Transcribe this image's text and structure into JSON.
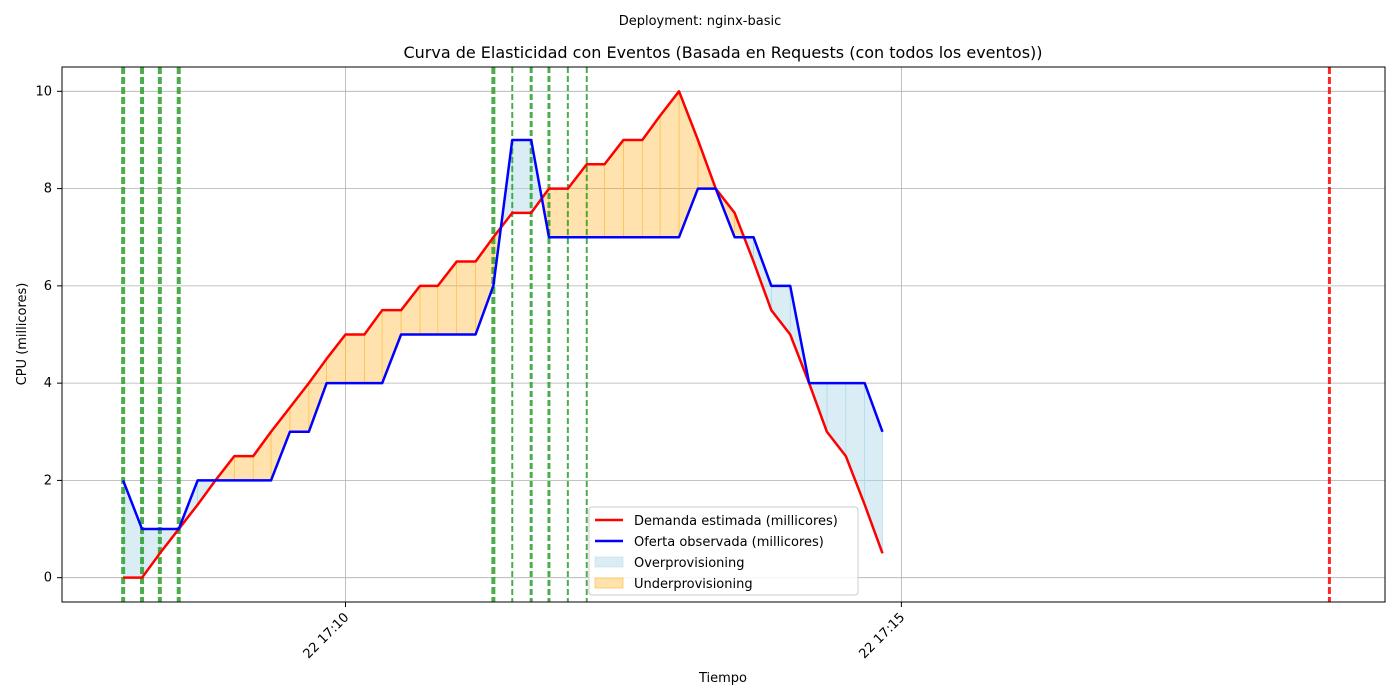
{
  "chart_data": {
    "type": "line",
    "suptitle": "Deployment: nginx-basic",
    "title": "Curva de Elasticidad con Eventos (Basada en Requests (con todos los eventos))",
    "xlabel": "Tiempo",
    "ylabel": "CPU (millicores)",
    "x_unit": "minutes after 17:08 on day 22",
    "xlim": [
      -0.55,
      11.35
    ],
    "ylim": [
      -0.5,
      10.5
    ],
    "yticks": [
      0,
      2,
      4,
      6,
      8,
      10
    ],
    "xticks": [
      {
        "x": 2,
        "label": "22 17:10"
      },
      {
        "x": 7,
        "label": "22 17:15"
      }
    ],
    "grid": true,
    "legend_position": "lower center",
    "series": [
      {
        "name": "Demanda estimada (millicores)",
        "color": "#ff0000",
        "x": [
          0.0,
          0.17,
          0.33,
          0.5,
          0.67,
          0.83,
          1.0,
          1.17,
          1.33,
          1.5,
          1.67,
          1.83,
          2.0,
          2.17,
          2.33,
          2.5,
          2.67,
          2.83,
          3.0,
          3.17,
          3.33,
          3.5,
          3.67,
          3.83,
          4.0,
          4.17,
          4.33,
          4.5,
          4.67,
          4.83,
          5.0,
          5.17,
          5.33,
          5.5,
          5.67,
          5.83,
          6.0,
          6.17,
          6.33,
          6.5,
          6.67,
          6.83,
          7.0
        ],
        "y": [
          0,
          0,
          0.5,
          1,
          1.5,
          2,
          2.5,
          2.5,
          3,
          3.5,
          4,
          4.5,
          5,
          5,
          5.5,
          5.5,
          6,
          6,
          6.5,
          6.5,
          7,
          7.5,
          7.5,
          8,
          8,
          8.5,
          8.5,
          9,
          9,
          9.5,
          10,
          9,
          8,
          7.5,
          6.5,
          5.5,
          5,
          4,
          3,
          2.5,
          1.5,
          0.5,
          null
        ]
      },
      {
        "name": "Oferta observada (millicores)",
        "color": "#0000ff",
        "x": [
          0.0,
          0.17,
          0.33,
          0.5,
          0.67,
          0.83,
          1.0,
          1.17,
          1.33,
          1.5,
          1.67,
          1.83,
          2.0,
          2.17,
          2.33,
          2.5,
          2.67,
          2.83,
          3.0,
          3.17,
          3.33,
          3.5,
          3.67,
          3.83,
          4.0,
          4.17,
          4.33,
          4.5,
          4.67,
          4.83,
          5.0,
          5.17,
          5.33,
          5.5,
          5.67,
          5.83,
          6.0,
          6.17,
          6.33,
          6.5,
          6.67,
          6.83,
          7.0
        ],
        "y": [
          2,
          1,
          1,
          1,
          2,
          2,
          2,
          2,
          2,
          3,
          3,
          4,
          4,
          4,
          4,
          5,
          5,
          5,
          5,
          5,
          6,
          9,
          9,
          7,
          7,
          7,
          7,
          7,
          7,
          7,
          7,
          8,
          8,
          7,
          7,
          6,
          6,
          4,
          4,
          4,
          4,
          3,
          null
        ]
      }
    ],
    "fills": [
      {
        "name": "Overprovisioning",
        "color": "#add8e6"
      },
      {
        "name": "Underprovisioning",
        "color": "#ffa500"
      }
    ],
    "event_lines": [
      {
        "x": 0.0,
        "color": "#2ca02c",
        "style": "thick"
      },
      {
        "x": 0.17,
        "color": "#2ca02c",
        "style": "thick"
      },
      {
        "x": 0.33,
        "color": "#2ca02c",
        "style": "thick"
      },
      {
        "x": 0.5,
        "color": "#2ca02c",
        "style": "thick"
      },
      {
        "x": 3.33,
        "color": "#2ca02c",
        "style": "thick"
      },
      {
        "x": 3.5,
        "color": "#2ca02c",
        "style": "thin"
      },
      {
        "x": 3.67,
        "color": "#2ca02c",
        "style": "medium"
      },
      {
        "x": 3.83,
        "color": "#2ca02c",
        "style": "medium"
      },
      {
        "x": 4.0,
        "color": "#2ca02c",
        "style": "thin"
      },
      {
        "x": 4.17,
        "color": "#2ca02c",
        "style": "thin"
      },
      {
        "x": 10.85,
        "color": "#ff0000",
        "style": "red"
      }
    ]
  }
}
